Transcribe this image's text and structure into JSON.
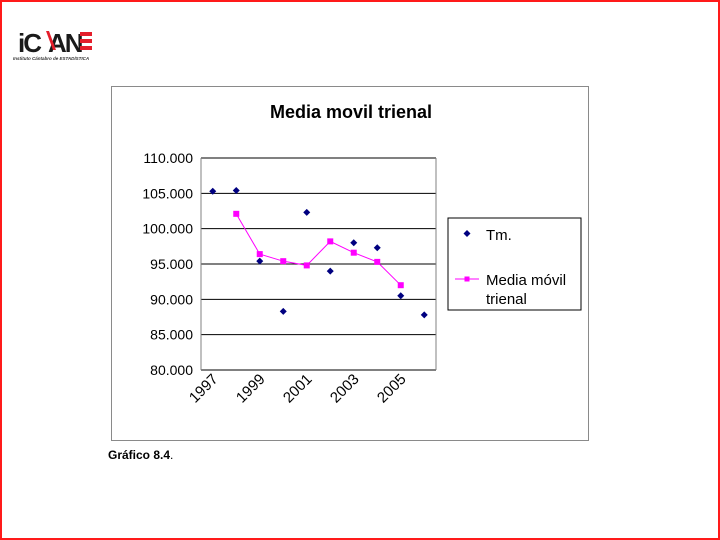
{
  "logo": {
    "text": "iCANE",
    "subtitle": "Instituto Cántabro de ESTADÍSTICA"
  },
  "caption": {
    "bold": "Gráfico 8.4",
    "rest": "."
  },
  "colors": {
    "frame": "#ff1a1a",
    "series_tm": "#000080",
    "series_media": "#ff00ff",
    "logo_red": "#e41e2b"
  },
  "chart_data": {
    "type": "line",
    "title": "Media movil trienal",
    "xlabel": "",
    "ylabel": "",
    "ylim": [
      80000,
      110000
    ],
    "yticks": [
      80000,
      85000,
      90000,
      95000,
      100000,
      105000,
      110000
    ],
    "ytick_labels": [
      "80.000",
      "85.000",
      "90.000",
      "95.000",
      "100.000",
      "105.000",
      "110.000"
    ],
    "x": [
      1997,
      1998,
      1999,
      2000,
      2001,
      2002,
      2003,
      2004,
      2005,
      2006
    ],
    "xtick_labels": [
      "1997",
      "1999",
      "2001",
      "2003",
      "2005"
    ],
    "grid": "horizontal",
    "legend_position": "right",
    "series": [
      {
        "name": "Tm.",
        "style": "markers",
        "marker": "diamond",
        "values": [
          105300,
          105400,
          95400,
          88300,
          102300,
          94000,
          98000,
          97300,
          90500,
          87800
        ]
      },
      {
        "name": "Media móvil trienal",
        "style": "line-markers",
        "marker": "square",
        "values": [
          null,
          102100,
          96400,
          95400,
          94800,
          98200,
          96600,
          95300,
          92000,
          null
        ]
      }
    ]
  }
}
